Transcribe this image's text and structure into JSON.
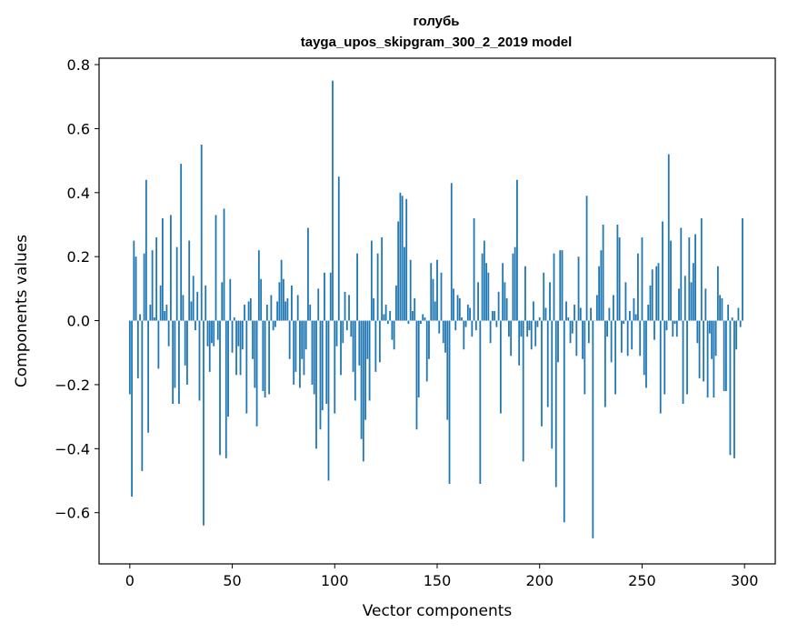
{
  "chart_data": {
    "type": "bar",
    "title": "голубь",
    "subtitle": "tayga_upos_skipgram_300_2_2019 model",
    "xlabel": "Vector components",
    "ylabel": "Components values",
    "xlim": [
      -15,
      315
    ],
    "ylim": [
      -0.76,
      0.82
    ],
    "xticks": [
      0,
      50,
      100,
      150,
      200,
      250,
      300
    ],
    "xtick_labels": [
      "0",
      "50",
      "100",
      "150",
      "200",
      "250",
      "300"
    ],
    "yticks": [
      -0.6,
      -0.4,
      -0.2,
      0.0,
      0.2,
      0.4,
      0.6,
      0.8
    ],
    "ytick_labels": [
      "−0.6",
      "−0.4",
      "−0.2",
      "0.0",
      "0.2",
      "0.4",
      "0.6",
      "0.8"
    ],
    "grid": false,
    "bar_color": "#1f77b4",
    "x": "0..299 (component index)",
    "values": [
      -0.23,
      -0.55,
      0.25,
      0.2,
      -0.18,
      0.02,
      -0.47,
      0.21,
      0.44,
      -0.35,
      0.05,
      0.22,
      0.01,
      0.26,
      -0.15,
      0.11,
      0.32,
      0.03,
      0.05,
      -0.08,
      0.33,
      -0.26,
      -0.21,
      0.23,
      -0.26,
      0.49,
      0.08,
      -0.14,
      -0.2,
      0.25,
      0.06,
      0.14,
      -0.03,
      0.09,
      -0.25,
      0.55,
      -0.64,
      0.11,
      -0.08,
      -0.16,
      -0.07,
      -0.08,
      0.33,
      -0.06,
      -0.42,
      0.12,
      0.35,
      -0.43,
      -0.3,
      0.13,
      -0.1,
      0.01,
      -0.17,
      -0.08,
      -0.17,
      -0.09,
      0.05,
      -0.29,
      0.06,
      0.07,
      -0.12,
      -0.21,
      -0.33,
      0.22,
      0.13,
      -0.22,
      -0.24,
      0.05,
      -0.23,
      0.08,
      -0.03,
      -0.02,
      0.06,
      0.12,
      0.19,
      0.13,
      0.06,
      0.07,
      -0.12,
      0.11,
      -0.2,
      -0.16,
      0.08,
      -0.21,
      -0.12,
      -0.17,
      -0.09,
      0.29,
      0.05,
      -0.2,
      -0.23,
      -0.4,
      0.1,
      -0.34,
      -0.28,
      0.15,
      -0.26,
      -0.5,
      0.15,
      0.75,
      -0.29,
      -0.08,
      0.45,
      -0.17,
      -0.07,
      0.09,
      -0.03,
      0.08,
      -0.05,
      -0.16,
      -0.25,
      0.21,
      -0.14,
      -0.37,
      -0.44,
      -0.31,
      -0.12,
      -0.25,
      0.25,
      0.07,
      -0.16,
      0.21,
      -0.13,
      0.26,
      0.02,
      0.05,
      -0.01,
      0.03,
      -0.06,
      -0.09,
      0.11,
      0.31,
      0.4,
      0.39,
      0.23,
      0.38,
      -0.01,
      0.19,
      0.03,
      0.07,
      -0.34,
      -0.24,
      -0.01,
      0.02,
      0.01,
      -0.19,
      -0.12,
      0.18,
      0.13,
      0.06,
      0.19,
      -0.04,
      0.15,
      -0.07,
      -0.1,
      -0.31,
      -0.51,
      0.43,
      0.1,
      -0.03,
      0.08,
      0.07,
      0.01,
      -0.09,
      -0.02,
      0.05,
      0.04,
      -0.05,
      0.32,
      -0.03,
      0.12,
      -0.51,
      0.21,
      0.25,
      0.18,
      0.15,
      -0.07,
      0.03,
      0.03,
      -0.02,
      0.09,
      -0.29,
      0.18,
      0.12,
      0.07,
      -0.05,
      -0.11,
      0.21,
      0.23,
      0.44,
      -0.14,
      -0.05,
      -0.44,
      0.17,
      -0.05,
      -0.03,
      -0.09,
      0.06,
      -0.08,
      -0.02,
      0.01,
      -0.33,
      0.15,
      0.04,
      -0.27,
      0.12,
      -0.4,
      0.21,
      -0.52,
      -0.13,
      0.22,
      0.22,
      -0.63,
      0.06,
      0.01,
      -0.07,
      -0.04,
      0.05,
      -0.11,
      0.2,
      0.04,
      -0.12,
      -0.23,
      0.39,
      -0.07,
      0.04,
      -0.68,
      0.0,
      0.08,
      0.17,
      0.22,
      0.3,
      -0.27,
      -0.05,
      0.04,
      -0.13,
      0.08,
      -0.23,
      0.3,
      0.26,
      -0.1,
      -0.01,
      0.12,
      -0.11,
      0.03,
      -0.09,
      0.07,
      0.02,
      0.21,
      -0.11,
      0.26,
      -0.17,
      -0.21,
      0.05,
      0.11,
      0.16,
      -0.06,
      0.17,
      0.18,
      -0.29,
      0.31,
      -0.23,
      -0.03,
      0.52,
      0.25,
      -0.05,
      -0.01,
      -0.05,
      0.1,
      0.29,
      -0.26,
      0.14,
      -0.23,
      0.26,
      0.12,
      0.18,
      0.27,
      -0.07,
      -0.18,
      0.32,
      -0.19,
      0.1,
      -0.24,
      -0.04,
      -0.12,
      -0.24,
      -0.11,
      0.17,
      0.08,
      0.07,
      -0.22,
      -0.22,
      0.05,
      -0.42,
      0.01,
      -0.43,
      -0.09,
      0.04,
      -0.02,
      0.32
    ]
  }
}
